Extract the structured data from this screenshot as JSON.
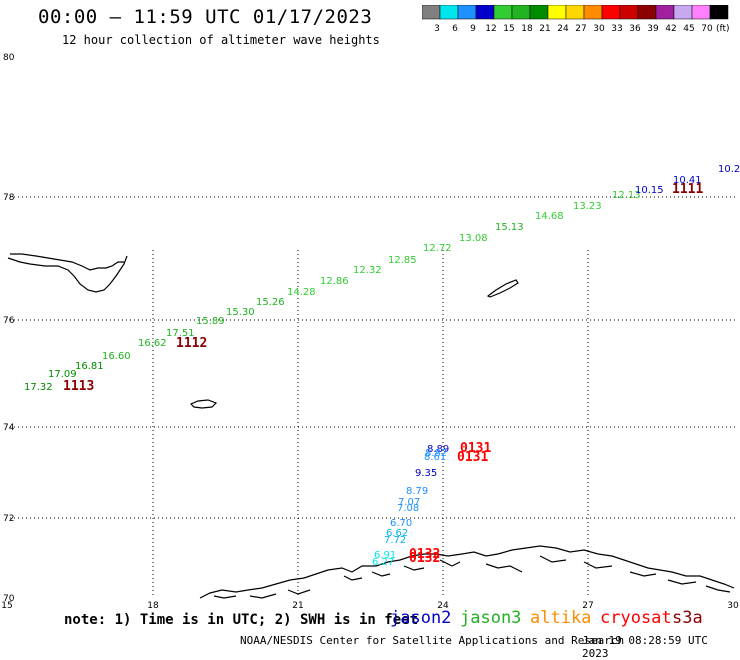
{
  "header": {
    "title": "00:00 – 11:59 UTC 01/17/2023",
    "subtitle": "12 hour collection of altimeter wave heights"
  },
  "colorbar": {
    "unit": "(ft)",
    "swatches": [
      {
        "label": "3",
        "color": "#808080"
      },
      {
        "label": "6",
        "color": "#00e5ee"
      },
      {
        "label": "9",
        "color": "#1e90ff"
      },
      {
        "label": "12",
        "color": "#0000cd"
      },
      {
        "label": "15",
        "color": "#32cd32"
      },
      {
        "label": "18",
        "color": "#22b222"
      },
      {
        "label": "21",
        "color": "#008b00"
      },
      {
        "label": "24",
        "color": "#ffff00"
      },
      {
        "label": "27",
        "color": "#ffd700"
      },
      {
        "label": "30",
        "color": "#ff8c00"
      },
      {
        "label": "33",
        "color": "#ff0000"
      },
      {
        "label": "36",
        "color": "#cd0000"
      },
      {
        "label": "39",
        "color": "#8b0000"
      },
      {
        "label": "42",
        "color": "#a020a0"
      },
      {
        "label": "45",
        "color": "#c8a8f0"
      },
      {
        "label": "70",
        "color": "#ff80ff"
      },
      {
        "label": "",
        "color": "#000000"
      }
    ]
  },
  "axes": {
    "lat_ticks": [
      "80",
      "78",
      "76",
      "74",
      "72",
      "70"
    ],
    "lon_ticks": [
      "15",
      "18",
      "21",
      "24",
      "27",
      "30"
    ]
  },
  "satellites": {
    "note": "note: 1) Time is in UTC; 2) SWH is in feet",
    "jason2": {
      "label": "jason2",
      "color": "#0000cd"
    },
    "jason3": {
      "label": "jason3",
      "color": "#22b222"
    },
    "altika": {
      "label": "altika",
      "color": "#ff8c00"
    },
    "cryosat": {
      "label": "cryosat",
      "color": "#ff0000"
    },
    "s3a": {
      "label": "s3a",
      "color": "#8b0000"
    }
  },
  "footer": {
    "credit": "NOAA/NESDIS Center for Satellite Applications and Research",
    "timestamp": "Jan 19 08:28:59 UTC 2023"
  },
  "observations": {
    "track_main": [
      {
        "v": "17.32",
        "c": "#008b00"
      },
      {
        "v": "17.09",
        "c": "#008b00"
      },
      {
        "v": "16.81",
        "c": "#008b00"
      },
      {
        "v": "16.60",
        "c": "#22b222"
      },
      {
        "v": "16.62",
        "c": "#22b222"
      },
      {
        "v": "17.51",
        "c": "#22b222"
      },
      {
        "v": "15.89",
        "c": "#22b222"
      },
      {
        "v": "15.30",
        "c": "#22b222"
      },
      {
        "v": "15.26",
        "c": "#22b222"
      },
      {
        "v": "14.28",
        "c": "#32cd32"
      },
      {
        "v": "12.86",
        "c": "#32cd32"
      },
      {
        "v": "12.32",
        "c": "#32cd32"
      },
      {
        "v": "12.85",
        "c": "#32cd32"
      },
      {
        "v": "12.72",
        "c": "#32cd32"
      },
      {
        "v": "13.08",
        "c": "#32cd32"
      },
      {
        "v": "15.13",
        "c": "#22b222"
      },
      {
        "v": "14.68",
        "c": "#32cd32"
      },
      {
        "v": "13.23",
        "c": "#32cd32"
      },
      {
        "v": "12.13",
        "c": "#32cd32"
      },
      {
        "v": "10.15",
        "c": "#0000cd"
      },
      {
        "v": "10.41",
        "c": "#0000cd"
      },
      {
        "v": "10.2",
        "c": "#0000cd"
      }
    ],
    "track_south": [
      {
        "v": "8.89",
        "c": "#0000cd"
      },
      {
        "v": "8.82",
        "c": "#1e90ff"
      },
      {
        "v": "8.61",
        "c": "#1e90ff"
      },
      {
        "v": "9.35",
        "c": "#0000cd"
      },
      {
        "v": "8.79",
        "c": "#1e90ff"
      },
      {
        "v": "7.07",
        "c": "#1e90ff"
      },
      {
        "v": "7.08",
        "c": "#1e90ff"
      },
      {
        "v": "6.70",
        "c": "#1e90ff"
      },
      {
        "v": "6.62",
        "c": "#00b2ee"
      },
      {
        "v": "7.72",
        "c": "#00b2ee"
      },
      {
        "v": "6.91",
        "c": "#00e5ee"
      },
      {
        "v": "6.27",
        "c": "#00e5ee"
      }
    ],
    "pass_times": [
      {
        "v": "1113",
        "c": "#8b0000"
      },
      {
        "v": "1112",
        "c": "#8b0000"
      },
      {
        "v": "1111",
        "c": "#8b0000"
      },
      {
        "v": "0131",
        "c": "#ff0000"
      },
      {
        "v": "0131",
        "c": "#ff0000"
      },
      {
        "v": "0132",
        "c": "#ff0000"
      },
      {
        "v": "0132",
        "c": "#ff0000"
      }
    ]
  }
}
